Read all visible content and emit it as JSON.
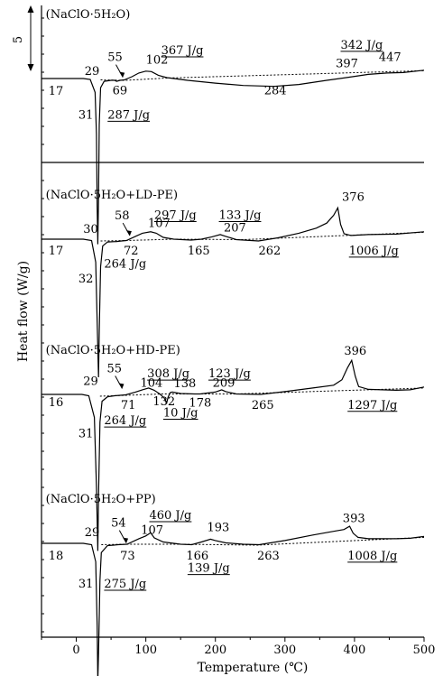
{
  "chart_data": {
    "type": "line",
    "xlabel": "Temperature (℃)",
    "ylabel": "Heat flow (W/g)",
    "xlim": [
      -50,
      500
    ],
    "x_ticks": [
      "0",
      "100",
      "200",
      "300",
      "400",
      "500"
    ],
    "scale_bar_label": "5",
    "grid": false,
    "panels": [
      {
        "label": "(NaClO·5H₂O)",
        "curve": [
          [
            -50,
            0
          ],
          [
            10,
            0
          ],
          [
            20,
            -0.2
          ],
          [
            27,
            -3
          ],
          [
            29,
            -12
          ],
          [
            30,
            -28
          ],
          [
            31,
            -36
          ],
          [
            32,
            -26
          ],
          [
            33,
            -10
          ],
          [
            35,
            -2
          ],
          [
            40,
            -0.6
          ],
          [
            50,
            -0.4
          ],
          [
            55,
            -0.4
          ],
          [
            58,
            -0.6
          ],
          [
            63,
            -0.4
          ],
          [
            69,
            -0.3
          ],
          [
            80,
            0.4
          ],
          [
            90,
            1.2
          ],
          [
            100,
            1.6
          ],
          [
            108,
            1.5
          ],
          [
            118,
            0.7
          ],
          [
            130,
            0.2
          ],
          [
            160,
            -0.4
          ],
          [
            200,
            -1.0
          ],
          [
            240,
            -1.5
          ],
          [
            284,
            -1.7
          ],
          [
            320,
            -1.3
          ],
          [
            360,
            -0.4
          ],
          [
            397,
            0.4
          ],
          [
            420,
            0.9
          ],
          [
            447,
            1.2
          ],
          [
            470,
            1.3
          ],
          [
            500,
            1.8
          ]
        ],
        "baselines": [
          [
            [
              35,
              -0.3
            ],
            [
              70,
              -0.4
            ],
            [
              130,
              0.1
            ],
            [
              500,
              1.7
            ]
          ]
        ],
        "annotations": [
          {
            "text": "17",
            "x": -40,
            "y": -3.5
          },
          {
            "text": "29",
            "x": 12,
            "y": 0.8
          },
          {
            "text": "55",
            "x": 45,
            "y": 3.8
          },
          {
            "text": "69",
            "x": 52,
            "y": -3.4
          },
          {
            "text": "102",
            "x": 100,
            "y": 3.2
          },
          {
            "text": "367 J/g",
            "x": 122,
            "y": 5.3,
            "underline": true
          },
          {
            "text": "31",
            "x": 3,
            "y": -8.7
          },
          {
            "text": "287 J/g",
            "x": 45,
            "y": -8.7,
            "underline": true
          },
          {
            "text": "284",
            "x": 270,
            "y": -3.4
          },
          {
            "text": "342 J/g",
            "x": 380,
            "y": 6.5,
            "underline": true
          },
          {
            "text": "397",
            "x": 373,
            "y": 2.5
          },
          {
            "text": "447",
            "x": 435,
            "y": 3.8
          }
        ]
      },
      {
        "label": "(NaClO·5H₂O+LD-PE)",
        "curve": [
          [
            -50,
            0
          ],
          [
            10,
            0
          ],
          [
            22,
            -0.3
          ],
          [
            28,
            -5
          ],
          [
            30,
            -18
          ],
          [
            32,
            -30
          ],
          [
            33,
            -20
          ],
          [
            35,
            -6
          ],
          [
            38,
            -1.5
          ],
          [
            45,
            -0.6
          ],
          [
            58,
            -0.5
          ],
          [
            65,
            -0.4
          ],
          [
            72,
            -0.3
          ],
          [
            85,
            0.6
          ],
          [
            95,
            1.3
          ],
          [
            107,
            1.6
          ],
          [
            115,
            1.3
          ],
          [
            125,
            0.4
          ],
          [
            140,
            0
          ],
          [
            165,
            -0.2
          ],
          [
            180,
            0
          ],
          [
            195,
            0.5
          ],
          [
            207,
            1.0
          ],
          [
            215,
            0.6
          ],
          [
            230,
            -0.1
          ],
          [
            262,
            -0.4
          ],
          [
            290,
            0.3
          ],
          [
            320,
            1.3
          ],
          [
            345,
            2.4
          ],
          [
            360,
            3.5
          ],
          [
            370,
            5.2
          ],
          [
            376,
            6.8
          ],
          [
            380,
            3.2
          ],
          [
            385,
            1.2
          ],
          [
            395,
            0.8
          ],
          [
            420,
            1.0
          ],
          [
            460,
            1.1
          ],
          [
            500,
            1.6
          ]
        ],
        "baselines": [
          [
            [
              35,
              -0.4
            ],
            [
              72,
              -0.3
            ],
            [
              140,
              0
            ],
            [
              240,
              -0.1
            ],
            [
              500,
              1.5
            ]
          ]
        ],
        "annotations": [
          {
            "text": "(NaClO·5H₂O+LD-PE)",
            "x": -44,
            "y": 8.8,
            "isLabel": true
          },
          {
            "text": "17",
            "x": -40,
            "y": -3.3
          },
          {
            "text": "30",
            "x": 10,
            "y": 1.4
          },
          {
            "text": "58",
            "x": 55,
            "y": 4.3
          },
          {
            "text": "72",
            "x": 68,
            "y": -3.3
          },
          {
            "text": "107",
            "x": 103,
            "y": 2.6
          },
          {
            "text": "297 J/g",
            "x": 112,
            "y": 4.4,
            "underline": true
          },
          {
            "text": "133 J/g",
            "x": 205,
            "y": 4.4,
            "underline": true
          },
          {
            "text": "207",
            "x": 212,
            "y": 1.7
          },
          {
            "text": "376",
            "x": 382,
            "y": 8.3
          },
          {
            "text": "165",
            "x": 160,
            "y": -3.3
          },
          {
            "text": "262",
            "x": 262,
            "y": -3.3
          },
          {
            "text": "1006 J/g",
            "x": 392,
            "y": -3.3,
            "underline": true
          },
          {
            "text": "32",
            "x": 3,
            "y": -9.4
          },
          {
            "text": "264 J/g",
            "x": 40,
            "y": -6.2
          }
        ]
      },
      {
        "label": "(NaClO·5H₂O+HD-PE)",
        "curve": [
          [
            -50,
            0
          ],
          [
            8,
            0
          ],
          [
            18,
            -0.3
          ],
          [
            26,
            -5
          ],
          [
            29,
            -20
          ],
          [
            31,
            -34
          ],
          [
            32,
            -22
          ],
          [
            34,
            -6
          ],
          [
            37,
            -1.5
          ],
          [
            45,
            -0.5
          ],
          [
            55,
            -0.3
          ],
          [
            63,
            -0.2
          ],
          [
            71,
            -0.1
          ],
          [
            85,
            0.5
          ],
          [
            95,
            1.0
          ],
          [
            104,
            1.4
          ],
          [
            112,
            0.9
          ],
          [
            120,
            0.1
          ],
          [
            126,
            -0.7
          ],
          [
            130,
            -1.8
          ],
          [
            132,
            -0.6
          ],
          [
            135,
            0.4
          ],
          [
            138,
            0.5
          ],
          [
            150,
            0.2
          ],
          [
            170,
            0.1
          ],
          [
            178,
            0.1
          ],
          [
            200,
            0.5
          ],
          [
            209,
            1.0
          ],
          [
            215,
            0.6
          ],
          [
            230,
            0.1
          ],
          [
            265,
            0
          ],
          [
            300,
            0.6
          ],
          [
            340,
            1.4
          ],
          [
            370,
            2.0
          ],
          [
            382,
            3.2
          ],
          [
            390,
            5.8
          ],
          [
            396,
            7.4
          ],
          [
            401,
            4.0
          ],
          [
            406,
            1.7
          ],
          [
            420,
            1.1
          ],
          [
            460,
            0.9
          ],
          [
            480,
            1.0
          ],
          [
            500,
            1.6
          ]
        ],
        "baselines": [
          [
            [
              34,
              -0.4
            ],
            [
              71,
              -0.2
            ],
            [
              124,
              0.1
            ],
            [
              230,
              0.1
            ],
            [
              500,
              1.4
            ]
          ]
        ],
        "annotations": [
          {
            "text": "(NaClO·5H₂O+HD-PE)",
            "x": -44,
            "y": 8.8,
            "isLabel": true
          },
          {
            "text": "29",
            "x": 10,
            "y": 2.1
          },
          {
            "text": "55",
            "x": 44,
            "y": 4.8
          },
          {
            "text": "16",
            "x": -40,
            "y": -2.5
          },
          {
            "text": "71",
            "x": 64,
            "y": -3.1
          },
          {
            "text": "104",
            "x": 92,
            "y": 1.7
          },
          {
            "text": "308 J/g",
            "x": 102,
            "y": 3.7,
            "underline": true
          },
          {
            "text": "138",
            "x": 140,
            "y": 1.6
          },
          {
            "text": "132",
            "x": 110,
            "y": -2.4
          },
          {
            "text": "10 J/g",
            "x": 125,
            "y": -4.8,
            "underline": true
          },
          {
            "text": "123 J/g",
            "x": 190,
            "y": 3.7,
            "underline": true
          },
          {
            "text": "209",
            "x": 196,
            "y": 1.7
          },
          {
            "text": "178",
            "x": 162,
            "y": -2.6
          },
          {
            "text": "265",
            "x": 252,
            "y": -3.1
          },
          {
            "text": "396",
            "x": 385,
            "y": 8.6
          },
          {
            "text": "1297 J/g",
            "x": 390,
            "y": -3.1,
            "underline": true
          },
          {
            "text": "264 J/g",
            "x": 40,
            "y": -6.5,
            "underline": true
          },
          {
            "text": "31",
            "x": 3,
            "y": -9.3
          }
        ]
      },
      {
        "label": "(NaClO·5H₂O+PP)",
        "curve": [
          [
            -50,
            0
          ],
          [
            10,
            0
          ],
          [
            22,
            -0.3
          ],
          [
            28,
            -4
          ],
          [
            30,
            -18
          ],
          [
            31,
            -30
          ],
          [
            32,
            -24
          ],
          [
            34,
            -8
          ],
          [
            36,
            -2
          ],
          [
            45,
            -0.5
          ],
          [
            54,
            -0.4
          ],
          [
            60,
            -0.3
          ],
          [
            73,
            -0.2
          ],
          [
            90,
            1.0
          ],
          [
            100,
            1.6
          ],
          [
            107,
            2.3
          ],
          [
            112,
            1.2
          ],
          [
            125,
            0.3
          ],
          [
            150,
            -0.2
          ],
          [
            166,
            -0.3
          ],
          [
            180,
            0.3
          ],
          [
            193,
            0.9
          ],
          [
            200,
            0.6
          ],
          [
            215,
            0.1
          ],
          [
            240,
            -0.2
          ],
          [
            263,
            -0.3
          ],
          [
            300,
            0.6
          ],
          [
            340,
            1.8
          ],
          [
            370,
            2.6
          ],
          [
            385,
            3.0
          ],
          [
            393,
            3.7
          ],
          [
            398,
            2.2
          ],
          [
            405,
            1.3
          ],
          [
            420,
            1.0
          ],
          [
            460,
            1.0
          ],
          [
            480,
            1.1
          ],
          [
            500,
            1.5
          ]
        ],
        "baselines": [
          [
            [
              36,
              -0.3
            ],
            [
              73,
              -0.2
            ],
            [
              150,
              -0.2
            ],
            [
              260,
              -0.4
            ],
            [
              500,
              1.3
            ]
          ]
        ],
        "annotations": [
          {
            "text": "(NaClO·5H₂O+PP)",
            "x": -44,
            "y": 8.8,
            "isLabel": true
          },
          {
            "text": "29",
            "x": 12,
            "y": 1.6
          },
          {
            "text": "54",
            "x": 50,
            "y": 3.6
          },
          {
            "text": "460 J/g",
            "x": 105,
            "y": 5.3,
            "underline": true
          },
          {
            "text": "107",
            "x": 93,
            "y": 2.1
          },
          {
            "text": "193",
            "x": 188,
            "y": 2.6
          },
          {
            "text": "393",
            "x": 383,
            "y": 4.6
          },
          {
            "text": "18",
            "x": -40,
            "y": -3.5
          },
          {
            "text": "73",
            "x": 63,
            "y": -3.5
          },
          {
            "text": "166",
            "x": 158,
            "y": -3.5
          },
          {
            "text": "263",
            "x": 260,
            "y": -3.5
          },
          {
            "text": "1008 J/g",
            "x": 390,
            "y": -3.5,
            "underline": true
          },
          {
            "text": "139 J/g",
            "x": 160,
            "y": -6.2,
            "underline": true
          },
          {
            "text": "275 J/g",
            "x": 40,
            "y": -9.6,
            "underline": true
          },
          {
            "text": "31",
            "x": 3,
            "y": -9.6
          }
        ]
      }
    ]
  }
}
